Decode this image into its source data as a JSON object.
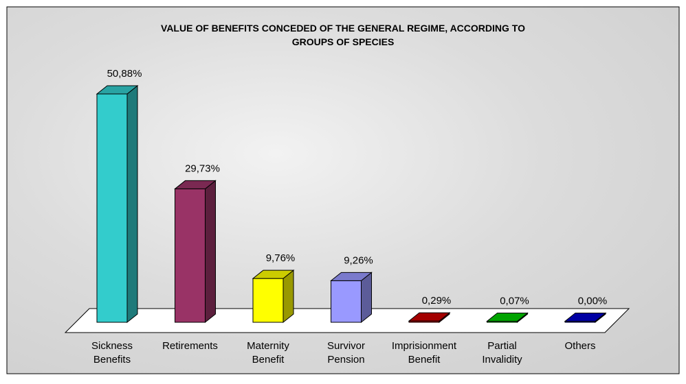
{
  "chart_data": {
    "type": "bar3d",
    "title": "VALUE OF BENEFITS CONCEDED OF THE GENERAL REGIME, ACCORDING TO GROUPS OF SPECIES",
    "categories": [
      "Sickness Benefits",
      "Retirements",
      "Maternity Benefit",
      "Survivor Pension",
      "Imprisionment Benefit",
      "Partial Invalidity",
      "Others"
    ],
    "values": [
      50.88,
      29.73,
      9.76,
      9.26,
      0.29,
      0.07,
      0.0
    ],
    "value_labels": [
      "50,88%",
      "29,73%",
      "9,76%",
      "9,26%",
      "0,29%",
      "0,07%",
      "0,00%"
    ],
    "colors": [
      "#33cccc",
      "#993366",
      "#ffff00",
      "#9999ff",
      "#cc0000",
      "#00cc00",
      "#0000cc"
    ]
  }
}
